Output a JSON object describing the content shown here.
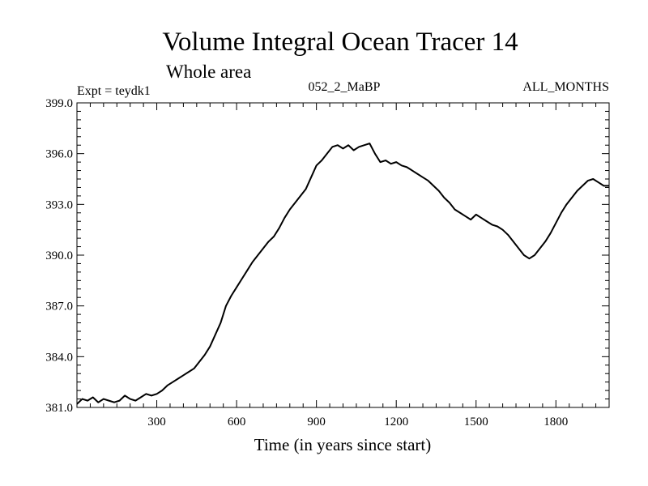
{
  "chart_data": {
    "type": "line",
    "title": "Volume Integral Ocean Tracer 14",
    "subtitle": "Whole area",
    "expt_label": "Expt = teydk1",
    "run_label": "052_2_MaBP",
    "months_label": "ALL_MONTHS",
    "xlabel": "Time (in years since start)",
    "ylabel": "",
    "xlim": [
      0,
      2000
    ],
    "ylim": [
      381.0,
      399.0
    ],
    "xticks": [
      300,
      600,
      900,
      1200,
      1500,
      1800
    ],
    "xtick_labels": [
      "300",
      "600",
      "900",
      "1200",
      "1500",
      "1800"
    ],
    "yticks": [
      381.0,
      384.0,
      387.0,
      390.0,
      393.0,
      396.0,
      399.0
    ],
    "ytick_labels": [
      "381.0",
      "384.0",
      "387.0",
      "390.0",
      "393.0",
      "396.0",
      "399.0"
    ],
    "grid": false,
    "line_color": "#000000",
    "series": [
      {
        "x": [
          0,
          20,
          40,
          60,
          80,
          100,
          120,
          140,
          160,
          180,
          200,
          220,
          240,
          260,
          280,
          300,
          320,
          340,
          360,
          380,
          400,
          420,
          440,
          460,
          480,
          500,
          520,
          540,
          560,
          580,
          600,
          620,
          640,
          660,
          680,
          700,
          720,
          740,
          760,
          780,
          800,
          820,
          840,
          860,
          880,
          900,
          920,
          940,
          960,
          980,
          1000,
          1020,
          1040,
          1060,
          1080,
          1100,
          1120,
          1140,
          1160,
          1180,
          1200,
          1220,
          1240,
          1260,
          1280,
          1300,
          1320,
          1340,
          1360,
          1380,
          1400,
          1420,
          1440,
          1460,
          1480,
          1500,
          1520,
          1540,
          1560,
          1580,
          1600,
          1620,
          1640,
          1660,
          1680,
          1700,
          1720,
          1740,
          1760,
          1780,
          1800,
          1820,
          1840,
          1860,
          1880,
          1900,
          1920,
          1940,
          1960,
          1980,
          2000
        ],
        "values": [
          381.2,
          381.5,
          381.4,
          381.6,
          381.3,
          381.5,
          381.4,
          381.3,
          381.4,
          381.7,
          381.5,
          381.4,
          381.6,
          381.8,
          381.7,
          381.8,
          382.0,
          382.3,
          382.5,
          382.7,
          382.9,
          383.1,
          383.3,
          383.7,
          384.1,
          384.6,
          385.3,
          386.0,
          387.0,
          387.6,
          388.1,
          388.6,
          389.1,
          389.6,
          390.0,
          390.4,
          390.8,
          391.1,
          391.6,
          392.2,
          392.7,
          393.1,
          393.5,
          393.9,
          394.6,
          395.3,
          395.6,
          396.0,
          396.4,
          396.5,
          396.3,
          396.5,
          396.2,
          396.4,
          396.5,
          396.6,
          396.0,
          395.5,
          395.6,
          395.4,
          395.5,
          395.3,
          395.2,
          395.0,
          394.8,
          394.6,
          394.4,
          394.1,
          393.8,
          393.4,
          393.1,
          392.7,
          392.5,
          392.3,
          392.1,
          392.4,
          392.2,
          392.0,
          391.8,
          391.7,
          391.5,
          391.2,
          390.8,
          390.4,
          390.0,
          389.8,
          390.0,
          390.4,
          390.8,
          391.3,
          391.9,
          392.5,
          393.0,
          393.4,
          393.8,
          394.1,
          394.4,
          394.5,
          394.3,
          394.1,
          394.1
        ]
      }
    ]
  }
}
